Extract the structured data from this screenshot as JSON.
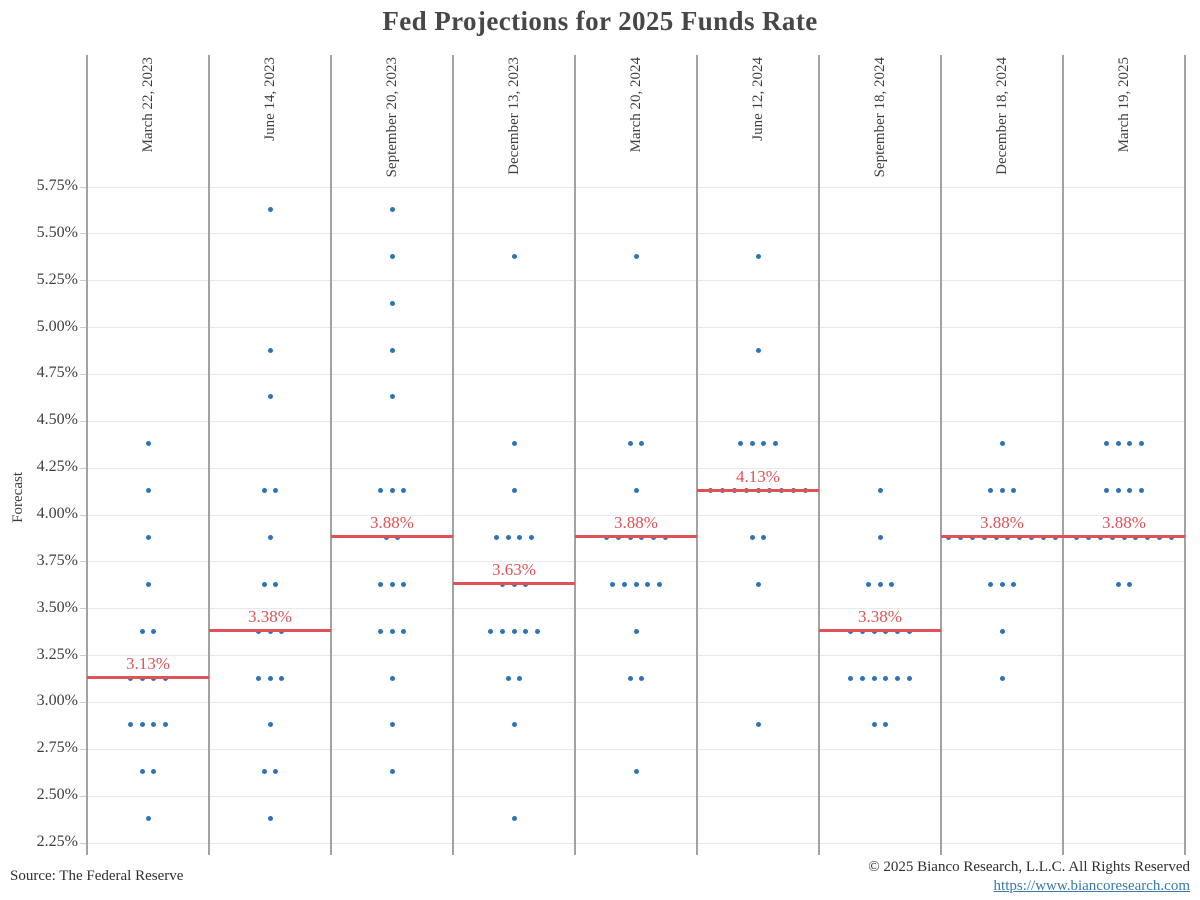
{
  "footer": {
    "source": "Source: The Federal Reserve",
    "copyright": "© 2025 Bianco Research, L.L.C. All Rights Reserved",
    "link": "https://www.biancoresearch.com"
  },
  "colors": {
    "dot": "#2e74b5",
    "median": "#e05255",
    "separator": "#a2a2a2",
    "gridline": "#e9e9e9"
  },
  "chart_data": {
    "type": "scatter",
    "title": "Fed Projections for 2025 Funds Rate",
    "ylabel": "Forecast",
    "ylim": [
      2.25,
      5.75
    ],
    "y_tick_step": 0.25,
    "grid": true,
    "y_ticks": [
      "5.75%",
      "5.50%",
      "5.25%",
      "5.00%",
      "4.75%",
      "4.50%",
      "4.25%",
      "4.00%",
      "3.75%",
      "3.50%",
      "3.25%",
      "3.00%",
      "2.75%",
      "2.50%",
      "2.25%"
    ],
    "meetings": [
      {
        "date": "March 22, 2023",
        "median": 3.13,
        "median_label": "3.13%",
        "dots": [
          {
            "rate": 4.38,
            "count": 1
          },
          {
            "rate": 4.13,
            "count": 1
          },
          {
            "rate": 3.88,
            "count": 1
          },
          {
            "rate": 3.63,
            "count": 1
          },
          {
            "rate": 3.38,
            "count": 2
          },
          {
            "rate": 3.13,
            "count": 4
          },
          {
            "rate": 2.88,
            "count": 4
          },
          {
            "rate": 2.63,
            "count": 2
          },
          {
            "rate": 2.38,
            "count": 1
          }
        ]
      },
      {
        "date": "June 14, 2023",
        "median": 3.38,
        "median_label": "3.38%",
        "dots": [
          {
            "rate": 5.63,
            "count": 1
          },
          {
            "rate": 4.88,
            "count": 1
          },
          {
            "rate": 4.63,
            "count": 1
          },
          {
            "rate": 4.13,
            "count": 2
          },
          {
            "rate": 3.88,
            "count": 1
          },
          {
            "rate": 3.63,
            "count": 2
          },
          {
            "rate": 3.38,
            "count": 3
          },
          {
            "rate": 3.13,
            "count": 3
          },
          {
            "rate": 2.88,
            "count": 1
          },
          {
            "rate": 2.63,
            "count": 2
          },
          {
            "rate": 2.38,
            "count": 1
          }
        ]
      },
      {
        "date": "September 20, 2023",
        "median": 3.88,
        "median_label": "3.88%",
        "dots": [
          {
            "rate": 5.63,
            "count": 1
          },
          {
            "rate": 5.38,
            "count": 1
          },
          {
            "rate": 5.13,
            "count": 1
          },
          {
            "rate": 4.88,
            "count": 1
          },
          {
            "rate": 4.63,
            "count": 1
          },
          {
            "rate": 4.13,
            "count": 3
          },
          {
            "rate": 3.88,
            "count": 2
          },
          {
            "rate": 3.63,
            "count": 3
          },
          {
            "rate": 3.38,
            "count": 3
          },
          {
            "rate": 3.13,
            "count": 1
          },
          {
            "rate": 2.88,
            "count": 1
          },
          {
            "rate": 2.63,
            "count": 1
          }
        ]
      },
      {
        "date": "December 13, 2023",
        "median": 3.63,
        "median_label": "3.63%",
        "dots": [
          {
            "rate": 5.38,
            "count": 1
          },
          {
            "rate": 4.38,
            "count": 1
          },
          {
            "rate": 4.13,
            "count": 1
          },
          {
            "rate": 3.88,
            "count": 4
          },
          {
            "rate": 3.63,
            "count": 3
          },
          {
            "rate": 3.38,
            "count": 5
          },
          {
            "rate": 3.13,
            "count": 2
          },
          {
            "rate": 2.88,
            "count": 1
          },
          {
            "rate": 2.38,
            "count": 1
          }
        ]
      },
      {
        "date": "March 20, 2024",
        "median": 3.88,
        "median_label": "3.88%",
        "dots": [
          {
            "rate": 5.38,
            "count": 1
          },
          {
            "rate": 4.38,
            "count": 2
          },
          {
            "rate": 4.13,
            "count": 1
          },
          {
            "rate": 3.88,
            "count": 6
          },
          {
            "rate": 3.63,
            "count": 5
          },
          {
            "rate": 3.38,
            "count": 1
          },
          {
            "rate": 3.13,
            "count": 2
          },
          {
            "rate": 2.63,
            "count": 1
          }
        ]
      },
      {
        "date": "June 12, 2024",
        "median": 4.13,
        "median_label": "4.13%",
        "dots": [
          {
            "rate": 5.38,
            "count": 1
          },
          {
            "rate": 4.88,
            "count": 1
          },
          {
            "rate": 4.38,
            "count": 4
          },
          {
            "rate": 4.13,
            "count": 9
          },
          {
            "rate": 3.88,
            "count": 2
          },
          {
            "rate": 3.63,
            "count": 1
          },
          {
            "rate": 2.88,
            "count": 1
          }
        ]
      },
      {
        "date": "September 18, 2024",
        "median": 3.38,
        "median_label": "3.38%",
        "dots": [
          {
            "rate": 4.13,
            "count": 1
          },
          {
            "rate": 3.88,
            "count": 1
          },
          {
            "rate": 3.63,
            "count": 3
          },
          {
            "rate": 3.38,
            "count": 6
          },
          {
            "rate": 3.13,
            "count": 6
          },
          {
            "rate": 2.88,
            "count": 2
          }
        ]
      },
      {
        "date": "December 18, 2024",
        "median": 3.88,
        "median_label": "3.88%",
        "dots": [
          {
            "rate": 4.38,
            "count": 1
          },
          {
            "rate": 4.13,
            "count": 3
          },
          {
            "rate": 3.88,
            "count": 10
          },
          {
            "rate": 3.63,
            "count": 3
          },
          {
            "rate": 3.38,
            "count": 1
          },
          {
            "rate": 3.13,
            "count": 1
          }
        ]
      },
      {
        "date": "March 19, 2025",
        "median": 3.88,
        "median_label": "3.88%",
        "dots": [
          {
            "rate": 4.38,
            "count": 4
          },
          {
            "rate": 4.13,
            "count": 4
          },
          {
            "rate": 3.88,
            "count": 9
          },
          {
            "rate": 3.63,
            "count": 2
          }
        ]
      }
    ]
  }
}
